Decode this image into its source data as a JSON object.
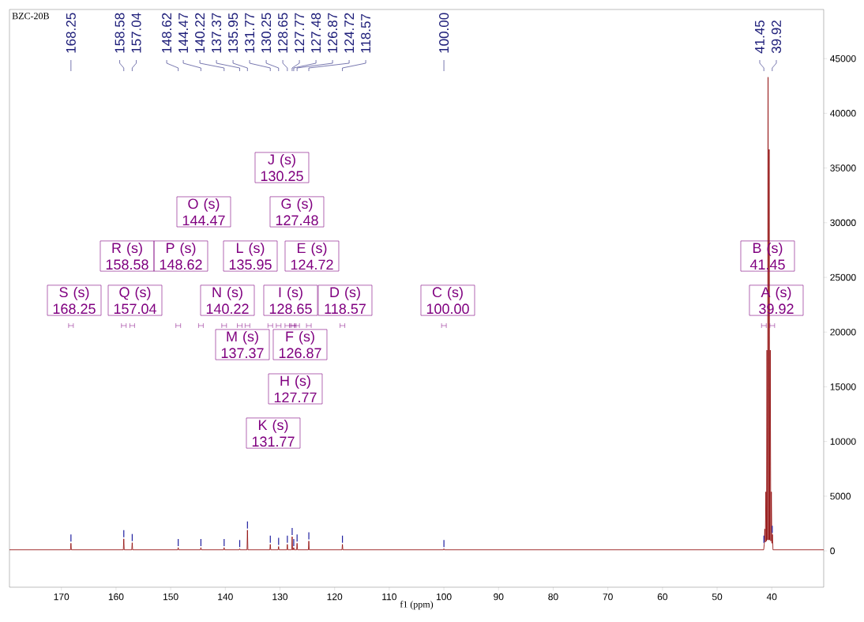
{
  "chart_data": {
    "type": "line",
    "title": "BZC-20B",
    "xlabel": "f1 (ppm)",
    "xlim": [
      179.5,
      30.5
    ],
    "ylim": [
      -3320,
      49490
    ],
    "xticks": [
      170,
      160,
      150,
      140,
      130,
      120,
      110,
      100,
      90,
      80,
      70,
      60,
      50,
      40
    ],
    "yticks": [
      0,
      5000,
      10000,
      15000,
      20000,
      25000,
      30000,
      35000,
      40000,
      45000
    ],
    "x": [
      179.5,
      168.33,
      168.25,
      168.17,
      158.66,
      158.58,
      158.5,
      157.12,
      157.04,
      156.96,
      148.7,
      148.62,
      148.54,
      144.55,
      144.47,
      144.39,
      140.3,
      140.22,
      140.14,
      137.45,
      137.37,
      137.29,
      136.03,
      135.95,
      135.87,
      131.85,
      131.77,
      131.69,
      130.33,
      130.25,
      130.17,
      128.73,
      128.65,
      128.57,
      127.85,
      127.77,
      127.69,
      127.56,
      127.48,
      127.4,
      126.95,
      126.87,
      126.79,
      124.8,
      124.72,
      124.64,
      118.65,
      118.57,
      118.49,
      100.08,
      100,
      99.92,
      41.48,
      41.38,
      41.28,
      41.18,
      41.08,
      40.98,
      40.88,
      40.78,
      40.68,
      40.58,
      40.48,
      40.38,
      40.28,
      40.18,
      40.08,
      39.98,
      39.88,
      39.78,
      30.5
    ],
    "series": [
      {
        "color": "#8b0000",
        "values": [
          100,
          100,
          700,
          100,
          100,
          1100,
          100,
          100,
          750,
          100,
          100,
          300,
          100,
          100,
          300,
          100,
          100,
          300,
          100,
          100,
          200,
          100,
          100,
          1900,
          100,
          100,
          600,
          100,
          100,
          400,
          100,
          100,
          600,
          100,
          100,
          1300,
          100,
          100,
          300,
          100,
          100,
          700,
          100,
          100,
          900,
          100,
          100,
          600,
          100,
          100,
          200,
          100,
          100,
          600,
          2000,
          800,
          5400,
          900,
          18350,
          1000,
          43300,
          1000,
          36700,
          1000,
          18350,
          900,
          5400,
          700,
          1500,
          100,
          100
        ]
      }
    ],
    "annotations": [
      {
        "text": "168.25",
        "x": 168.25
      },
      {
        "text": "158.58",
        "x": 158.58
      },
      {
        "text": "157.04",
        "x": 157.04
      },
      {
        "text": "148.62",
        "x": 148.62
      },
      {
        "text": "144.47",
        "x": 144.47
      },
      {
        "text": "140.22",
        "x": 140.22
      },
      {
        "text": "137.37",
        "x": 137.37
      },
      {
        "text": "135.95",
        "x": 135.95
      },
      {
        "text": "131.77",
        "x": 131.77
      },
      {
        "text": "130.25",
        "x": 130.25
      },
      {
        "text": "128.65",
        "x": 128.65
      },
      {
        "text": "127.77",
        "x": 127.77
      },
      {
        "text": "127.48",
        "x": 127.48
      },
      {
        "text": "126.87",
        "x": 126.87
      },
      {
        "text": "124.72",
        "x": 124.72
      },
      {
        "text": "118.57",
        "x": 118.57
      },
      {
        "text": "100.00",
        "x": 100.0
      },
      {
        "text": "41.45",
        "x": 41.45
      },
      {
        "text": "39.92",
        "x": 39.92
      },
      "J (s) 130.25",
      "O (s) 144.47",
      "G (s) 127.48",
      "R (s) 158.58",
      "P (s) 148.62",
      "L (s) 135.95",
      "E (s) 124.72",
      "B (s) 41.45",
      "S (s) 168.25",
      "Q (s) 157.04",
      "N (s) 140.22",
      "I (s) 128.65",
      "D (s) 118.57",
      "C (s) 100.00",
      "A (s) 39.92",
      "M (s) 137.37",
      "F (s) 126.87",
      "H (s) 127.77",
      "K (s) 131.77"
    ]
  }
}
